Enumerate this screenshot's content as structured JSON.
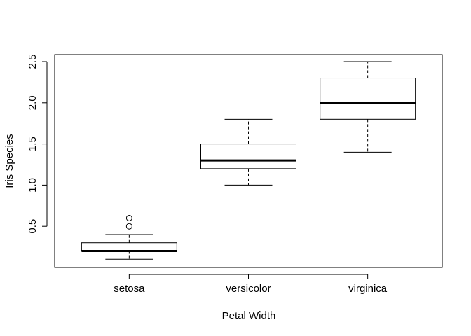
{
  "chart_data": {
    "type": "boxplot",
    "title": "",
    "xlabel": "Petal Width",
    "ylabel": "Iris Species",
    "categories": [
      "setosa",
      "versicolor",
      "virginica"
    ],
    "ylim": [
      0.0,
      2.6
    ],
    "y_ticks": [
      0.5,
      1.0,
      1.5,
      2.0,
      2.5
    ],
    "y_tick_labels": [
      "0.5",
      "1.0",
      "1.5",
      "2.0",
      "2.5"
    ],
    "grid": false,
    "legend": "none",
    "boxes": [
      {
        "category": "setosa",
        "whisker_low": 0.1,
        "q1": 0.2,
        "median": 0.2,
        "q3": 0.3,
        "whisker_high": 0.4,
        "outliers": [
          0.5,
          0.6
        ]
      },
      {
        "category": "versicolor",
        "whisker_low": 1.0,
        "q1": 1.2,
        "median": 1.3,
        "q3": 1.5,
        "whisker_high": 1.8,
        "outliers": []
      },
      {
        "category": "virginica",
        "whisker_low": 1.4,
        "q1": 1.8,
        "median": 2.0,
        "q3": 2.3,
        "whisker_high": 2.5,
        "outliers": []
      }
    ],
    "colors": {
      "box_fill": "#ffffff",
      "stroke": "#000000"
    }
  }
}
